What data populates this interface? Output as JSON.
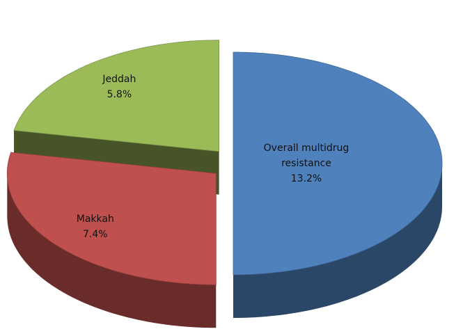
{
  "chart_data": {
    "type": "pie",
    "categories": [
      "Overall multidrug resistance",
      "Makkah",
      "Jeddah"
    ],
    "values": [
      13.2,
      7.4,
      5.8
    ],
    "value_labels": [
      "13.2%",
      "7.4%",
      "5.8%"
    ],
    "colors": [
      "#4f81bd",
      "#c0504d",
      "#9bbb59"
    ],
    "exploded": [
      false,
      true,
      true
    ]
  }
}
